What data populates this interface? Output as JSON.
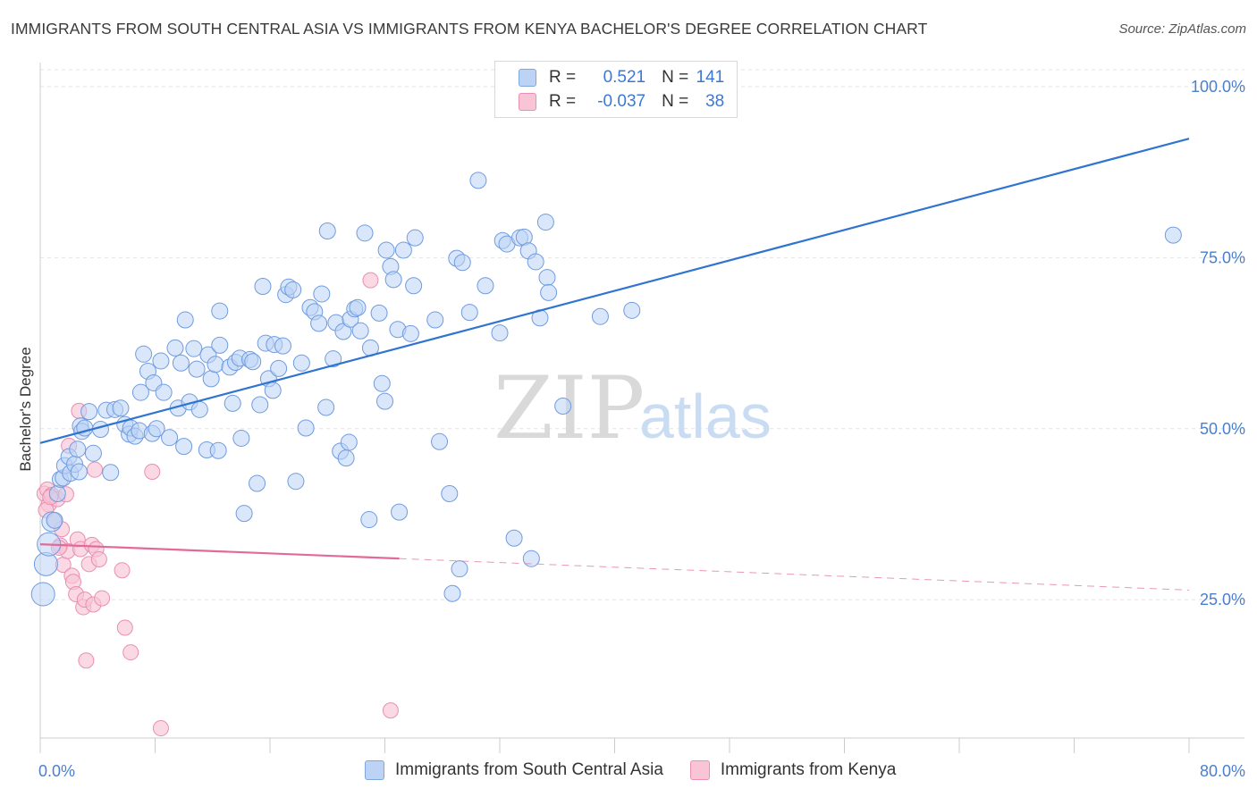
{
  "header": {
    "title": "IMMIGRANTS FROM SOUTH CENTRAL ASIA VS IMMIGRANTS FROM KENYA BACHELOR'S DEGREE CORRELATION CHART",
    "source": "Source: ZipAtlas.com"
  },
  "legend": {
    "rows": [
      {
        "r_label": "R =",
        "r_value": "0.521",
        "n_label": "N =",
        "n_value": "141"
      },
      {
        "r_label": "R =",
        "r_value": "-0.037",
        "n_label": "N =",
        "n_value": "38"
      }
    ]
  },
  "watermark": {
    "zip": "ZIP",
    "atlas": "atlas"
  },
  "colors": {
    "blue_fill": "#bcd3f5",
    "blue_stroke": "#6f9be0",
    "blue_line": "#2f74d0",
    "pink_fill": "#f8c4d6",
    "pink_stroke": "#e98fb0",
    "pink_line": "#e26a98",
    "tick": "#4a7fd0",
    "grid": "#e3e3e3"
  },
  "chart_data": {
    "type": "scatter",
    "title": "IMMIGRANTS FROM SOUTH CENTRAL ASIA VS IMMIGRANTS FROM KENYA BACHELOR'S DEGREE CORRELATION CHART",
    "xlabel": "",
    "ylabel": "Bachelor's Degree",
    "xlim": [
      0,
      80
    ],
    "ylim": [
      0,
      105
    ],
    "x_tick_labels": [
      {
        "value": 0,
        "label": "0.0%"
      },
      {
        "value": 80,
        "label": "80.0%"
      }
    ],
    "y_tick_labels": [
      {
        "value": 25,
        "label": "25.0%"
      },
      {
        "value": 50,
        "label": "50.0%"
      },
      {
        "value": 75,
        "label": "75.0%"
      },
      {
        "value": 100,
        "label": "100.0%"
      }
    ],
    "grid": "horizontal dashed",
    "legend_position": "top-center",
    "series": [
      {
        "name": "Immigrants from South Central Asia",
        "color": "#6f9be0",
        "trend": {
          "x": [
            0,
            80
          ],
          "y": [
            47.9,
            92.4
          ],
          "style": "solid"
        },
        "points": [
          [
            0.2,
            25.8
          ],
          [
            0.4,
            30.2
          ],
          [
            0.6,
            33.1
          ],
          [
            0.8,
            36.4
          ],
          [
            1.0,
            36.6
          ],
          [
            1.2,
            40.5
          ],
          [
            1.4,
            42.6
          ],
          [
            1.6,
            42.8
          ],
          [
            1.7,
            44.6
          ],
          [
            2.0,
            45.9
          ],
          [
            2.1,
            43.5
          ],
          [
            2.4,
            44.8
          ],
          [
            2.6,
            47.0
          ],
          [
            2.7,
            43.7
          ],
          [
            2.8,
            50.4
          ],
          [
            2.9,
            49.6
          ],
          [
            3.1,
            50.1
          ],
          [
            3.4,
            52.5
          ],
          [
            3.7,
            46.4
          ],
          [
            4.2,
            49.9
          ],
          [
            4.6,
            52.7
          ],
          [
            4.9,
            43.6
          ],
          [
            5.2,
            52.8
          ],
          [
            5.6,
            53.0
          ],
          [
            5.9,
            50.6
          ],
          [
            6.2,
            49.2
          ],
          [
            6.3,
            50.1
          ],
          [
            6.6,
            48.9
          ],
          [
            6.9,
            49.7
          ],
          [
            7.0,
            55.3
          ],
          [
            7.2,
            60.9
          ],
          [
            7.5,
            58.4
          ],
          [
            7.8,
            49.3
          ],
          [
            7.9,
            56.7
          ],
          [
            8.1,
            50.0
          ],
          [
            8.4,
            59.9
          ],
          [
            8.6,
            55.3
          ],
          [
            9.0,
            48.7
          ],
          [
            9.4,
            61.8
          ],
          [
            9.6,
            53.0
          ],
          [
            9.8,
            59.6
          ],
          [
            10.0,
            47.4
          ],
          [
            10.1,
            65.9
          ],
          [
            10.4,
            53.9
          ],
          [
            10.7,
            61.7
          ],
          [
            10.9,
            58.7
          ],
          [
            11.1,
            52.8
          ],
          [
            11.6,
            46.9
          ],
          [
            11.7,
            60.8
          ],
          [
            11.9,
            57.3
          ],
          [
            12.2,
            59.4
          ],
          [
            12.4,
            46.8
          ],
          [
            12.5,
            62.2
          ],
          [
            12.5,
            67.2
          ],
          [
            13.2,
            59.0
          ],
          [
            13.4,
            53.7
          ],
          [
            13.6,
            59.7
          ],
          [
            13.9,
            60.3
          ],
          [
            14.0,
            48.6
          ],
          [
            14.2,
            37.6
          ],
          [
            14.6,
            60.1
          ],
          [
            14.8,
            59.8
          ],
          [
            15.1,
            42.0
          ],
          [
            15.3,
            53.5
          ],
          [
            15.5,
            70.8
          ],
          [
            15.7,
            62.5
          ],
          [
            15.9,
            57.3
          ],
          [
            16.2,
            55.6
          ],
          [
            16.3,
            62.3
          ],
          [
            16.6,
            58.8
          ],
          [
            16.9,
            62.1
          ],
          [
            17.1,
            69.6
          ],
          [
            17.3,
            70.7
          ],
          [
            17.6,
            70.3
          ],
          [
            17.8,
            42.3
          ],
          [
            18.2,
            59.6
          ],
          [
            18.5,
            50.1
          ],
          [
            18.8,
            67.7
          ],
          [
            19.1,
            67.1
          ],
          [
            19.4,
            65.4
          ],
          [
            19.6,
            69.7
          ],
          [
            19.9,
            53.1
          ],
          [
            20.0,
            78.9
          ],
          [
            20.4,
            60.2
          ],
          [
            20.6,
            65.5
          ],
          [
            20.9,
            46.7
          ],
          [
            21.1,
            64.2
          ],
          [
            21.3,
            45.7
          ],
          [
            21.6,
            66.0
          ],
          [
            21.5,
            48.0
          ],
          [
            21.9,
            67.5
          ],
          [
            22.1,
            67.7
          ],
          [
            22.3,
            64.3
          ],
          [
            22.6,
            78.6
          ],
          [
            23.0,
            61.8
          ],
          [
            22.9,
            36.7
          ],
          [
            23.6,
            66.9
          ],
          [
            23.8,
            56.6
          ],
          [
            24.0,
            54.0
          ],
          [
            24.1,
            76.1
          ],
          [
            24.4,
            73.7
          ],
          [
            24.6,
            71.8
          ],
          [
            24.9,
            64.5
          ],
          [
            25.0,
            37.8
          ],
          [
            25.3,
            76.1
          ],
          [
            25.8,
            63.9
          ],
          [
            26.0,
            70.9
          ],
          [
            26.1,
            77.9
          ],
          [
            27.5,
            65.9
          ],
          [
            27.8,
            48.1
          ],
          [
            28.5,
            40.5
          ],
          [
            28.7,
            25.9
          ],
          [
            29.0,
            74.9
          ],
          [
            29.2,
            29.5
          ],
          [
            29.4,
            74.3
          ],
          [
            29.9,
            67.0
          ],
          [
            30.5,
            86.3
          ],
          [
            31.0,
            70.9
          ],
          [
            32.0,
            64.0
          ],
          [
            32.2,
            77.5
          ],
          [
            32.5,
            77.0
          ],
          [
            33.0,
            34.0
          ],
          [
            33.4,
            77.9
          ],
          [
            33.7,
            78.0
          ],
          [
            34.0,
            76.0
          ],
          [
            34.2,
            31.0
          ],
          [
            34.5,
            74.4
          ],
          [
            34.8,
            66.2
          ],
          [
            35.2,
            80.2
          ],
          [
            35.3,
            72.1
          ],
          [
            35.4,
            69.9
          ],
          [
            36.4,
            53.3
          ],
          [
            39.0,
            66.4
          ],
          [
            41.2,
            67.3
          ],
          [
            78.9,
            78.3
          ]
        ],
        "sizes": {
          "0.2,25.8": "large",
          "0.4,30.2": "large",
          "0.6,33.1": "large",
          "0.8,36.4": "medium"
        }
      },
      {
        "name": "Immigrants from Kenya",
        "color": "#e98fb0",
        "trend": {
          "x": [
            0,
            80
          ],
          "y": [
            33.1,
            26.4
          ],
          "style": "solid-then-dashed",
          "solid_until_x": 25
        },
        "points": [
          [
            0.3,
            40.5
          ],
          [
            0.5,
            41.1
          ],
          [
            0.6,
            38.9
          ],
          [
            0.8,
            40.3
          ],
          [
            1.0,
            36.6
          ],
          [
            1.2,
            39.7
          ],
          [
            1.4,
            32.9
          ],
          [
            1.5,
            35.3
          ],
          [
            1.6,
            30.1
          ],
          [
            1.8,
            40.4
          ],
          [
            1.9,
            32.1
          ],
          [
            2.0,
            47.5
          ],
          [
            2.2,
            28.5
          ],
          [
            2.3,
            27.6
          ],
          [
            2.5,
            25.8
          ],
          [
            2.6,
            33.8
          ],
          [
            2.7,
            52.6
          ],
          [
            2.8,
            32.4
          ],
          [
            3.0,
            23.9
          ],
          [
            3.1,
            25.0
          ],
          [
            3.2,
            16.1
          ],
          [
            3.4,
            30.2
          ],
          [
            3.6,
            33.0
          ],
          [
            3.7,
            24.3
          ],
          [
            3.8,
            44.0
          ],
          [
            3.9,
            32.4
          ],
          [
            4.1,
            30.9
          ],
          [
            4.3,
            25.2
          ],
          [
            5.7,
            29.3
          ],
          [
            5.9,
            20.9
          ],
          [
            6.3,
            17.3
          ],
          [
            7.8,
            43.7
          ],
          [
            8.4,
            6.2
          ],
          [
            23.0,
            71.7
          ],
          [
            24.4,
            8.8
          ],
          [
            0.4,
            38.1
          ],
          [
            0.7,
            40.0
          ],
          [
            1.3,
            32.6
          ]
        ]
      }
    ]
  },
  "bottom_legend": {
    "items": [
      {
        "label": "Immigrants from South Central Asia"
      },
      {
        "label": "Immigrants from Kenya"
      }
    ]
  }
}
